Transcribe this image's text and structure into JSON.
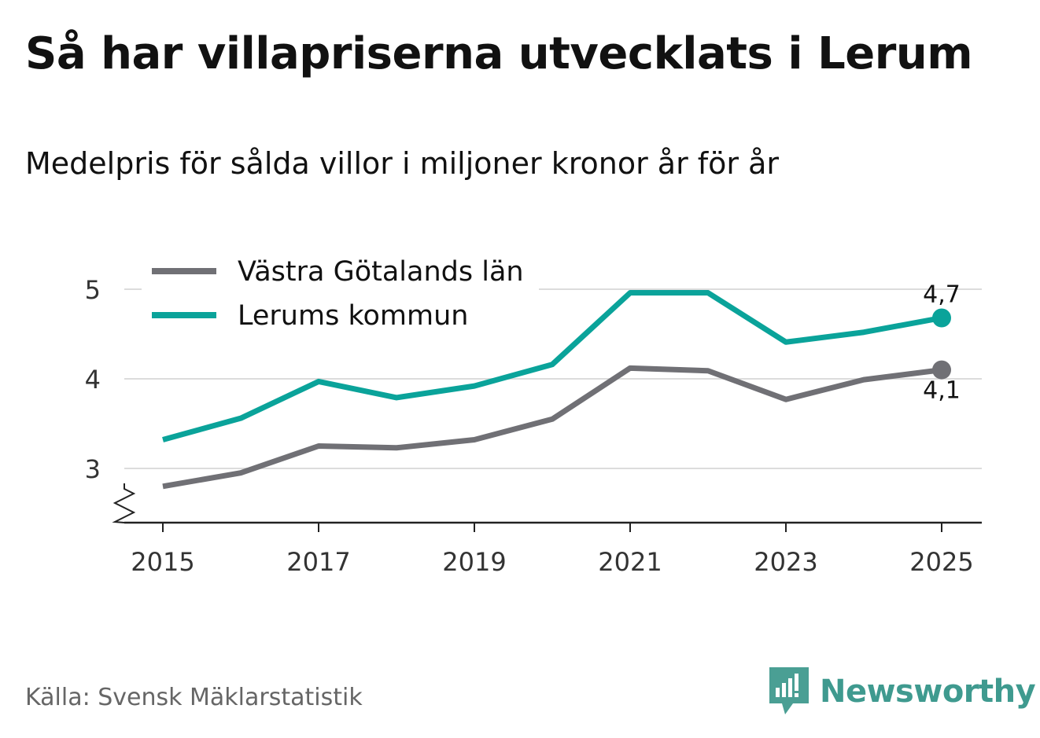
{
  "title": "Så har villapriserna utvecklats i Lerum",
  "subtitle": "Medelpris för sålda villor i miljoner kronor år för år",
  "source": "Källa: Svensk Mäklarstatistik",
  "brand": {
    "name": "Newsworthy",
    "icon": "newsworthy-logo-icon",
    "color": "#4a9f94"
  },
  "chart_data": {
    "type": "line",
    "x": [
      2015,
      2016,
      2017,
      2018,
      2019,
      2020,
      2021,
      2022,
      2023,
      2024,
      2025
    ],
    "x_ticks": [
      "2015",
      "2017",
      "2019",
      "2021",
      "2023",
      "2025"
    ],
    "y_ticks": [
      "3",
      "4",
      "5"
    ],
    "ylim": [
      2.4,
      5.1
    ],
    "axis_break": true,
    "grid": true,
    "legend_position": "top-left",
    "series": [
      {
        "name": "Västra Götalands län",
        "color": "#707075",
        "values": [
          2.8,
          2.95,
          3.25,
          3.23,
          3.32,
          3.55,
          4.12,
          4.09,
          3.77,
          3.99,
          4.1
        ],
        "end_label": "4,1"
      },
      {
        "name": "Lerums kommun",
        "color": "#0aa39a",
        "values": [
          3.32,
          3.56,
          3.97,
          3.79,
          3.92,
          4.16,
          4.96,
          4.96,
          4.41,
          4.52,
          4.68
        ],
        "end_label": "4,7"
      }
    ]
  }
}
